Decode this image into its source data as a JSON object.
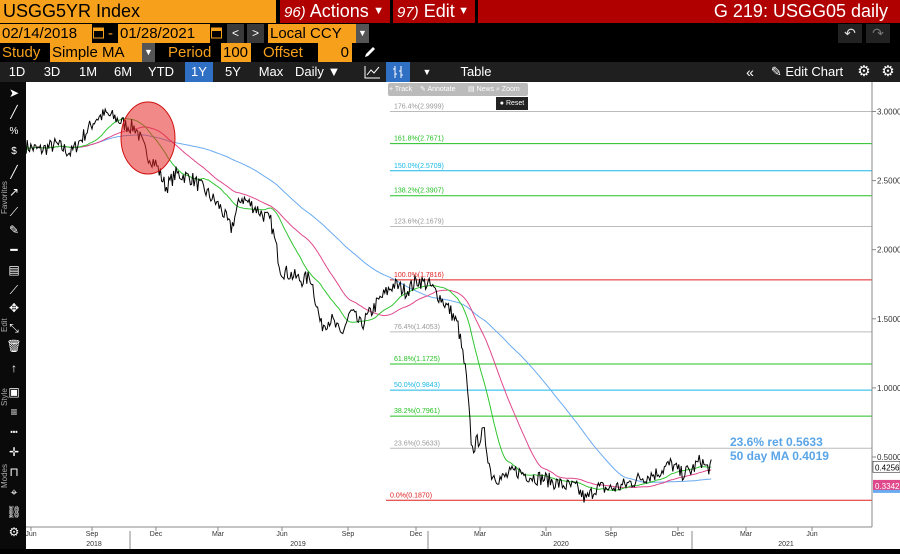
{
  "header": {
    "ticker": "USGG5YR Index",
    "actions": {
      "num": "96)",
      "label": "Actions"
    },
    "edit": {
      "num": "97)",
      "label": "Edit"
    },
    "title": "G 219: USGG05 daily"
  },
  "daterange": {
    "start": "02/14/2018",
    "end": "01/28/2021",
    "dash": "-",
    "currency": "Local CCY"
  },
  "study": {
    "label": "Study",
    "type": "Simple MA",
    "period_label": "Period",
    "period": "100",
    "offset_label": "Offset",
    "offset": "0"
  },
  "toolbar": {
    "ranges": [
      "1D",
      "3D",
      "1M",
      "6M",
      "YTD",
      "1Y",
      "5Y",
      "Max"
    ],
    "selected": "1Y",
    "frequency": "Daily",
    "table": "Table",
    "edit_chart": "Edit Chart"
  },
  "chart_toolbar": {
    "track": "Track",
    "annotate": "Annotate",
    "news": "News",
    "zoom": "Zoom",
    "reset": "Reset"
  },
  "side_labels": [
    "Favorites",
    "Edit",
    "Style",
    "Modes"
  ],
  "chart_data": {
    "type": "line",
    "series": [
      {
        "color": "#000000"
      },
      {
        "color": "#31c531"
      },
      {
        "color": "#e0488c"
      },
      {
        "color": "#6aaaf0"
      }
    ],
    "y_ticks": [
      "3.0000",
      "2.5000",
      "2.0000",
      "1.5000",
      "1.0000",
      "0.5000"
    ],
    "ylim": [
      0.08,
      3.1
    ],
    "x_months": [
      "Jun",
      "Sep",
      "Dec",
      "Mar",
      "Jun",
      "Sep",
      "Dec",
      "Mar",
      "Jun",
      "Sep",
      "Dec",
      "Mar",
      "Jun"
    ],
    "x_years": [
      "2018",
      "2019",
      "2020",
      "2021"
    ],
    "fib_levels": [
      {
        "label": "176.4%(2.9999)",
        "value": 2.9999,
        "color": "#bbbbbb"
      },
      {
        "label": "161.8%(2.7671)",
        "value": 2.7671,
        "color": "#22c022"
      },
      {
        "label": "150.0%(2.5709)",
        "value": 2.5709,
        "color": "#18b8e8"
      },
      {
        "label": "138.2%(2.3907)",
        "value": 2.3907,
        "color": "#22c022"
      },
      {
        "label": "123.6%(2.1679)",
        "value": 2.1679,
        "color": "#bbbbbb"
      },
      {
        "label": "100.0%(1.7816)",
        "value": 1.7816,
        "color": "#e02020"
      },
      {
        "label": "76.4%(1.4053)",
        "value": 1.4053,
        "color": "#bbbbbb"
      },
      {
        "label": "61.8%(1.1725)",
        "value": 1.1725,
        "color": "#22c022"
      },
      {
        "label": "50.0%(0.9843)",
        "value": 0.9843,
        "color": "#18b8e8"
      },
      {
        "label": "38.2%(0.7961)",
        "value": 0.7961,
        "color": "#22c022"
      },
      {
        "label": "23.6%(0.5633)",
        "value": 0.5633,
        "color": "#bbbbbb"
      },
      {
        "label": "0.0%(0.1870)",
        "value": 0.187,
        "color": "#e02020"
      }
    ],
    "annotation_1": "23.6% ret 0.5633",
    "annotation_2": "50 day MA 0.4019",
    "last_labels": [
      {
        "text": "0.4256",
        "value": 0.4256
      },
      {
        "text": "0.3342",
        "value": 0.3342
      }
    ]
  }
}
